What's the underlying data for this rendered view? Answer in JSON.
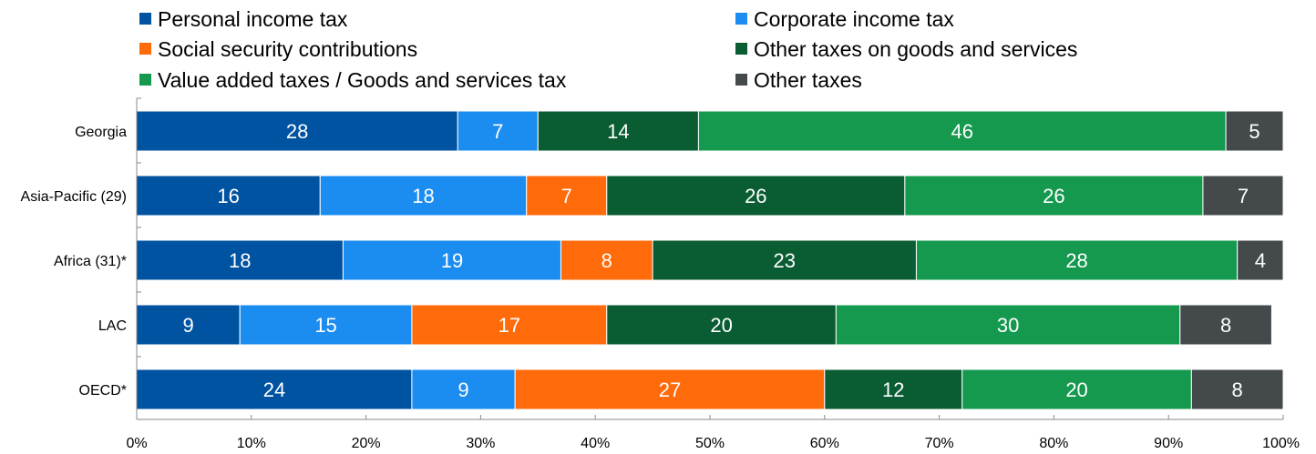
{
  "chart_data": {
    "type": "bar",
    "orientation": "horizontal",
    "stacked": true,
    "categories": [
      "Georgia",
      "Asia-Pacific (29)",
      "Africa (31)*",
      "LAC",
      "OECD*"
    ],
    "series": [
      {
        "name": "Personal income tax",
        "color": "#0053a0",
        "values": [
          28,
          16,
          18,
          9,
          24
        ]
      },
      {
        "name": "Corporate income tax",
        "color": "#1b8cf0",
        "values": [
          7,
          18,
          19,
          15,
          9
        ]
      },
      {
        "name": "Social security contributions",
        "color": "#ff6a0a",
        "values": [
          0,
          7,
          8,
          17,
          27
        ]
      },
      {
        "name": "Other taxes on goods and services",
        "color": "#0a5c32",
        "values": [
          14,
          26,
          23,
          20,
          12
        ]
      },
      {
        "name": "Value added taxes / Goods and services tax",
        "color": "#14994e",
        "values": [
          46,
          26,
          28,
          30,
          20
        ]
      },
      {
        "name": "Other taxes",
        "color": "#444a4c",
        "values": [
          5,
          7,
          4,
          8,
          8
        ]
      }
    ],
    "xlim": [
      0,
      100
    ],
    "xticks": [
      "0%",
      "10%",
      "20%",
      "30%",
      "40%",
      "50%",
      "60%",
      "70%",
      "80%",
      "90%",
      "100%"
    ],
    "legend_position": "top",
    "grid": false
  }
}
